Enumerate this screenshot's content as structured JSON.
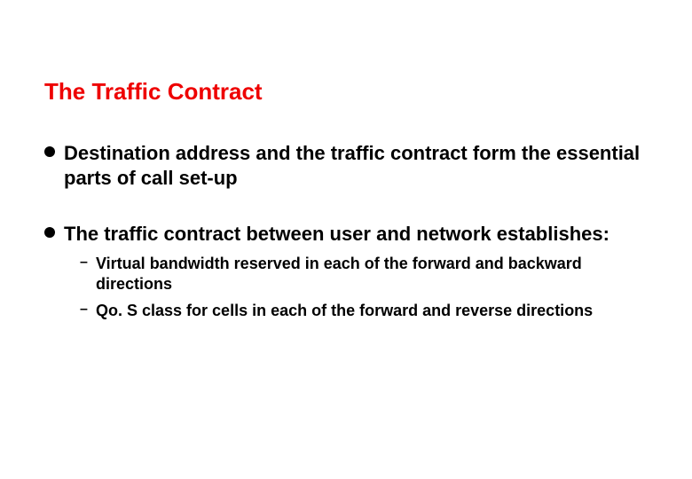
{
  "title": {
    "text": "The Traffic Contract",
    "color": "#ee0000",
    "fontsize": 26
  },
  "bullets": [
    {
      "text": "Destination address and the traffic contract form the essential parts of call set-up",
      "fontsize": 22,
      "color": "#000000",
      "subs": []
    },
    {
      "text": "The traffic contract between user and network establishes:",
      "fontsize": 22,
      "color": "#000000",
      "subs": [
        {
          "text": "Virtual bandwidth reserved in each of the forward and backward directions",
          "fontsize": 18,
          "color": "#000000"
        },
        {
          "text": "Qo. S class for cells in each of the forward and reverse directions",
          "fontsize": 18,
          "color": "#000000"
        }
      ]
    }
  ],
  "background_color": "#ffffff"
}
